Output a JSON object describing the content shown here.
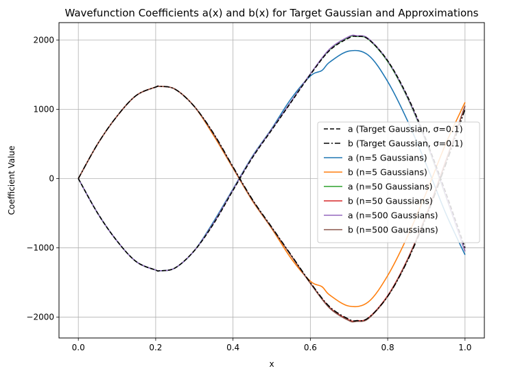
{
  "chart_data": {
    "type": "line",
    "title": "Wavefunction Coefficients a(x) and b(x) for Target Gaussian and Approximations",
    "xlabel": "x",
    "ylabel": "Coefficient Value",
    "xlim": [
      -0.05,
      1.05
    ],
    "ylim": [
      -2300,
      2250
    ],
    "xticks": [
      0.0,
      0.2,
      0.4,
      0.6,
      0.8,
      1.0
    ],
    "xtick_labels": [
      "0.0",
      "0.2",
      "0.4",
      "0.6",
      "0.8",
      "1.0"
    ],
    "yticks": [
      -2000,
      -1000,
      0,
      1000,
      2000
    ],
    "ytick_labels": [
      "−2000",
      "−1000",
      "0",
      "1000",
      "2000"
    ],
    "grid": true,
    "legend_position": "center-right",
    "series": [
      {
        "name": "a (Target Gaussian, σ=0.1)",
        "color": "#000000",
        "dash": "dashed",
        "x": [
          0.0,
          0.05,
          0.1,
          0.15,
          0.2,
          0.21,
          0.25,
          0.3,
          0.35,
          0.4,
          0.45,
          0.5,
          0.55,
          0.6,
          0.65,
          0.7,
          0.72,
          0.75,
          0.8,
          0.85,
          0.9,
          0.95,
          1.0
        ],
        "y": [
          0,
          -500,
          -900,
          -1200,
          -1320,
          -1330,
          -1290,
          -1040,
          -650,
          -170,
          300,
          700,
          1100,
          1500,
          1850,
          2030,
          2050,
          2010,
          1700,
          1200,
          550,
          -200,
          -1000
        ]
      },
      {
        "name": "b (Target Gaussian, σ=0.1)",
        "color": "#000000",
        "dash": "dashdot",
        "x": [
          0.0,
          0.05,
          0.1,
          0.15,
          0.2,
          0.21,
          0.25,
          0.3,
          0.35,
          0.4,
          0.45,
          0.5,
          0.55,
          0.6,
          0.65,
          0.7,
          0.72,
          0.75,
          0.8,
          0.85,
          0.9,
          0.95,
          1.0
        ],
        "y": [
          0,
          500,
          900,
          1200,
          1320,
          1330,
          1290,
          1040,
          650,
          170,
          -300,
          -700,
          -1100,
          -1500,
          -1850,
          -2030,
          -2050,
          -2010,
          -1700,
          -1200,
          -550,
          200,
          1000
        ]
      },
      {
        "name": "a (n=5 Gaussians)",
        "color": "#1f77b4",
        "dash": "solid",
        "x": [
          0.0,
          0.05,
          0.1,
          0.15,
          0.2,
          0.21,
          0.25,
          0.3,
          0.35,
          0.4,
          0.45,
          0.5,
          0.55,
          0.6,
          0.63,
          0.65,
          0.7,
          0.75,
          0.8,
          0.85,
          0.9,
          0.95,
          1.0
        ],
        "y": [
          0,
          -500,
          -900,
          -1200,
          -1320,
          -1330,
          -1290,
          -1040,
          -620,
          -150,
          320,
          720,
          1150,
          1480,
          1560,
          1680,
          1840,
          1780,
          1400,
          850,
          200,
          -500,
          -1100
        ]
      },
      {
        "name": "b (n=5 Gaussians)",
        "color": "#ff7f0e",
        "dash": "solid",
        "x": [
          0.0,
          0.05,
          0.1,
          0.15,
          0.2,
          0.21,
          0.25,
          0.3,
          0.35,
          0.4,
          0.45,
          0.5,
          0.55,
          0.6,
          0.63,
          0.65,
          0.7,
          0.75,
          0.8,
          0.85,
          0.9,
          0.95,
          1.0
        ],
        "y": [
          0,
          500,
          900,
          1200,
          1320,
          1330,
          1290,
          1040,
          620,
          150,
          -320,
          -720,
          -1150,
          -1480,
          -1560,
          -1680,
          -1840,
          -1780,
          -1400,
          -850,
          -200,
          500,
          1100
        ]
      },
      {
        "name": "a (n=50 Gaussians)",
        "color": "#2ca02c",
        "dash": "solid",
        "x": [
          0.0,
          0.05,
          0.1,
          0.15,
          0.2,
          0.21,
          0.25,
          0.3,
          0.35,
          0.4,
          0.45,
          0.5,
          0.55,
          0.6,
          0.65,
          0.7,
          0.72,
          0.75,
          0.8,
          0.85,
          0.9,
          0.95,
          1.0
        ],
        "y": [
          0,
          -500,
          -900,
          -1200,
          -1320,
          -1330,
          -1290,
          -1040,
          -640,
          -160,
          310,
          710,
          1110,
          1510,
          1860,
          2040,
          2050,
          2010,
          1690,
          1180,
          520,
          -250,
          -1050
        ]
      },
      {
        "name": "b (n=50 Gaussians)",
        "color": "#d62728",
        "dash": "solid",
        "x": [
          0.0,
          0.05,
          0.1,
          0.15,
          0.2,
          0.21,
          0.25,
          0.3,
          0.35,
          0.4,
          0.45,
          0.5,
          0.55,
          0.6,
          0.65,
          0.7,
          0.72,
          0.75,
          0.8,
          0.85,
          0.9,
          0.95,
          1.0
        ],
        "y": [
          0,
          500,
          900,
          1200,
          1320,
          1330,
          1290,
          1040,
          640,
          160,
          -310,
          -710,
          -1110,
          -1510,
          -1860,
          -2040,
          -2050,
          -2010,
          -1690,
          -1180,
          -520,
          250,
          1050
        ]
      },
      {
        "name": "a (n=500 Gaussians)",
        "color": "#9467bd",
        "dash": "solid",
        "x": [
          0.0,
          0.05,
          0.1,
          0.15,
          0.2,
          0.21,
          0.25,
          0.3,
          0.35,
          0.4,
          0.45,
          0.5,
          0.55,
          0.6,
          0.65,
          0.7,
          0.72,
          0.75,
          0.8,
          0.85,
          0.9,
          0.95,
          1.0
        ],
        "y": [
          0,
          -500,
          -900,
          -1200,
          -1320,
          -1330,
          -1290,
          -1040,
          -640,
          -160,
          310,
          710,
          1110,
          1510,
          1870,
          2050,
          2060,
          2020,
          1700,
          1190,
          530,
          -240,
          -1050
        ]
      },
      {
        "name": "b (n=500 Gaussians)",
        "color": "#8c564b",
        "dash": "solid",
        "x": [
          0.0,
          0.05,
          0.1,
          0.15,
          0.2,
          0.21,
          0.25,
          0.3,
          0.35,
          0.4,
          0.45,
          0.5,
          0.55,
          0.6,
          0.65,
          0.7,
          0.72,
          0.75,
          0.8,
          0.85,
          0.9,
          0.95,
          1.0
        ],
        "y": [
          0,
          500,
          900,
          1200,
          1320,
          1330,
          1290,
          1040,
          640,
          160,
          -310,
          -710,
          -1110,
          -1510,
          -1870,
          -2050,
          -2060,
          -2020,
          -1700,
          -1190,
          -530,
          240,
          1050
        ]
      }
    ]
  }
}
